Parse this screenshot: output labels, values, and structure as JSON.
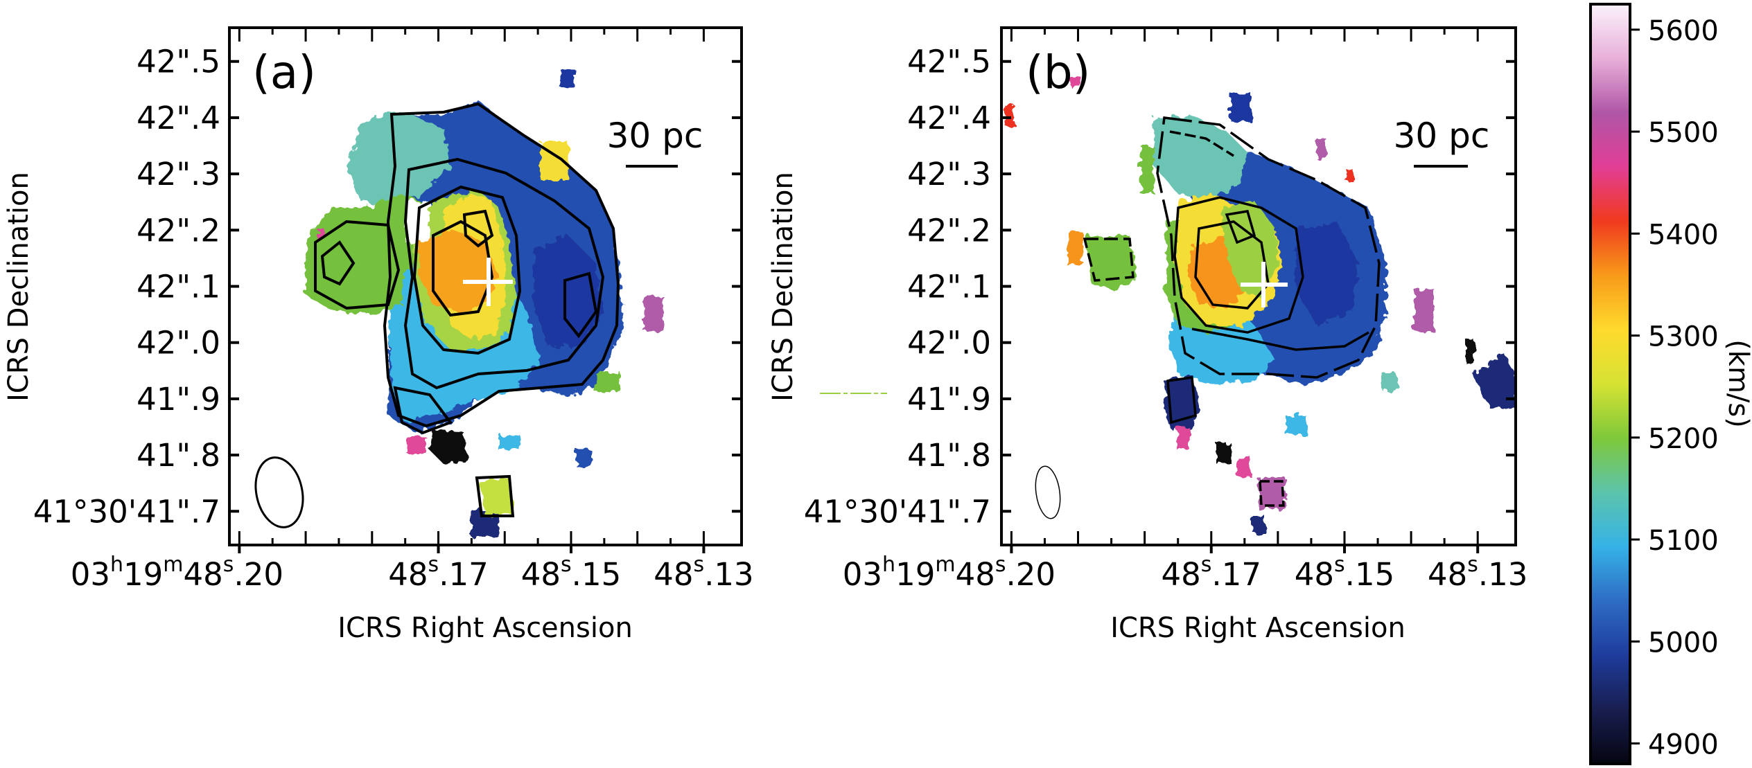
{
  "chart_data": [
    {
      "type": "heatmap",
      "panel_label": "(a)",
      "xlabel": "ICRS Right Ascension",
      "ylabel": "ICRS Declination",
      "x_tick_labels": [
        {
          "value": 0.2,
          "h": "03",
          "m": "19",
          "s": "48",
          "frac": ".20"
        },
        {
          "value": 0.17,
          "s": "48",
          "frac": ".17"
        },
        {
          "value": 0.15,
          "s": "48",
          "frac": ".15"
        },
        {
          "value": 0.13,
          "s": "48",
          "frac": ".13"
        }
      ],
      "y_tick_labels": [
        {
          "value": 42.5,
          "text": "42\".5"
        },
        {
          "value": 42.4,
          "text": "42\".4"
        },
        {
          "value": 42.3,
          "text": "42\".3"
        },
        {
          "value": 42.2,
          "text": "42\".2"
        },
        {
          "value": 42.1,
          "text": "42\".1"
        },
        {
          "value": 42.0,
          "text": "42\".0"
        },
        {
          "value": 41.9,
          "text": "41\".9"
        },
        {
          "value": 41.8,
          "text": "41\".8"
        },
        {
          "value": 41.7,
          "text": "41°30'41\".7"
        }
      ],
      "xlim": [
        0.2015,
        0.1243
      ],
      "ylim": [
        41.64,
        42.56
      ],
      "scale_bar": "30 pc",
      "grid": false
    },
    {
      "type": "heatmap",
      "panel_label": "(b)",
      "xlabel": "ICRS Right Ascension",
      "ylabel": "ICRS Declination",
      "x_tick_labels": [
        {
          "value": 0.2,
          "h": "03",
          "m": "19",
          "s": "48",
          "frac": ".20"
        },
        {
          "value": 0.17,
          "s": "48",
          "frac": ".17"
        },
        {
          "value": 0.15,
          "s": "48",
          "frac": ".15"
        },
        {
          "value": 0.13,
          "s": "48",
          "frac": ".13"
        }
      ],
      "y_tick_labels": [
        {
          "value": 42.5,
          "text": "42\".5"
        },
        {
          "value": 42.4,
          "text": "42\".4"
        },
        {
          "value": 42.3,
          "text": "42\".3"
        },
        {
          "value": 42.2,
          "text": "42\".2"
        },
        {
          "value": 42.1,
          "text": "42\".1"
        },
        {
          "value": 42.0,
          "text": "42\".0"
        },
        {
          "value": 41.9,
          "text": "41\".9"
        },
        {
          "value": 41.8,
          "text": "41\".8"
        },
        {
          "value": 41.7,
          "text": "41°30'41\".7"
        }
      ],
      "xlim": [
        0.2015,
        0.1243
      ],
      "ylim": [
        41.64,
        42.56
      ],
      "scale_bar": "30 pc",
      "grid": false
    }
  ],
  "colorbar": {
    "label": "(km/s)",
    "ticks": [
      4900,
      5000,
      5100,
      5200,
      5300,
      5400,
      5500,
      5600
    ],
    "range": [
      4880,
      5625
    ],
    "colors": [
      "#050510",
      "#181e50",
      "#1e3c9c",
      "#2e6cc4",
      "#36b2e6",
      "#5cc4ac",
      "#7ec83a",
      "#d6e234",
      "#ffda2c",
      "#f89a1a",
      "#f03a1e",
      "#e23e96",
      "#b056a6",
      "#e8b0da",
      "#fbf2fb"
    ]
  },
  "palette": {
    "green": "#74c03c",
    "teal": "#6cc4b4",
    "cyan": "#3cb8e6",
    "blue": "#2450b0",
    "navy": "#1c2a78",
    "black": "#0a0a10",
    "yellow": "#f8e634",
    "orange": "#f7941d",
    "magenta": "#e0489a",
    "purple": "#b05ca8",
    "red": "#ee3224"
  }
}
